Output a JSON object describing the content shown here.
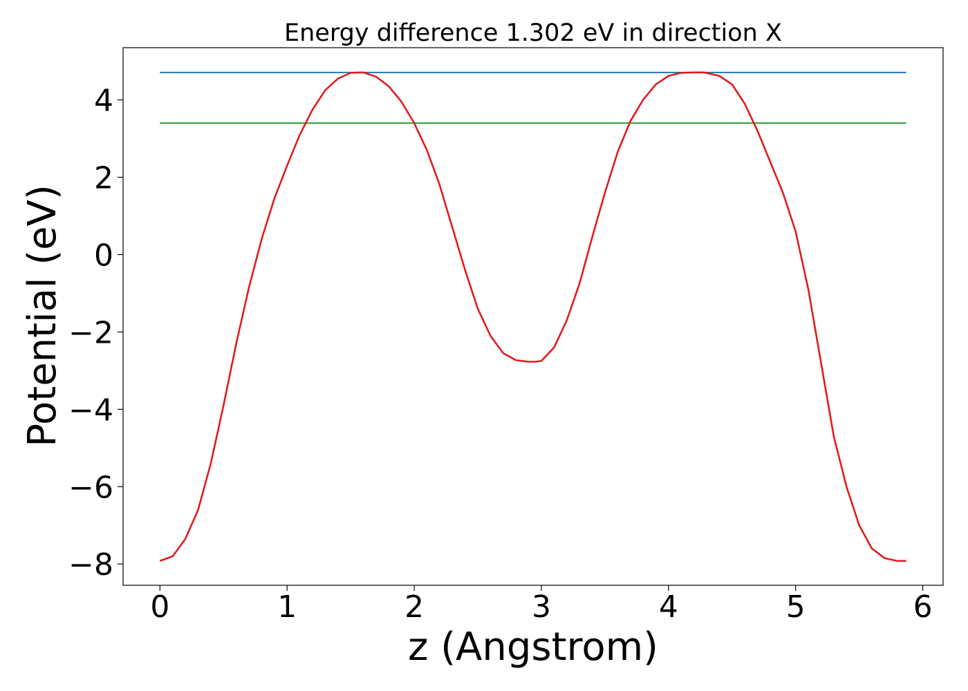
{
  "chart_data": {
    "type": "line",
    "title": "Energy difference 1.302 eV in direction X",
    "xlabel": "z (Angstrom)",
    "ylabel": "Potential (eV)",
    "xlim": [
      -0.29,
      6.16
    ],
    "ylim": [
      -8.55,
      5.35
    ],
    "grid": false,
    "legend": "none",
    "x_ticks": [
      0,
      1,
      2,
      3,
      4,
      5,
      6
    ],
    "x_tick_labels": [
      "0",
      "1",
      "2",
      "3",
      "4",
      "5",
      "6"
    ],
    "y_ticks": [
      -8,
      -6,
      -4,
      -2,
      0,
      2,
      4
    ],
    "y_tick_labels": [
      "−8",
      "−6",
      "−4",
      "−2",
      "0",
      "2",
      "4"
    ],
    "series": [
      {
        "color": "#1f77b4",
        "x": [
          0,
          5.87
        ],
        "y": [
          4.71,
          4.71
        ]
      },
      {
        "color": "#2ca02c",
        "x": [
          0,
          5.87
        ],
        "y": [
          3.4,
          3.4
        ]
      },
      {
        "color": "#e31a1c",
        "x": [
          0.0,
          0.1,
          0.2,
          0.3,
          0.4,
          0.5,
          0.6,
          0.7,
          0.8,
          0.9,
          1.0,
          1.1,
          1.2,
          1.3,
          1.4,
          1.5,
          1.6,
          1.7,
          1.8,
          1.9,
          2.0,
          2.1,
          2.2,
          2.3,
          2.4,
          2.5,
          2.6,
          2.7,
          2.8,
          2.9,
          2.95,
          3.0,
          3.1,
          3.2,
          3.3,
          3.4,
          3.5,
          3.6,
          3.7,
          3.8,
          3.9,
          4.0,
          4.1,
          4.2,
          4.28,
          4.4,
          4.5,
          4.6,
          4.7,
          4.8,
          4.9,
          5.0,
          5.1,
          5.2,
          5.3,
          5.4,
          5.5,
          5.6,
          5.7,
          5.8,
          5.87
        ],
        "y": [
          -7.92,
          -7.8,
          -7.35,
          -6.6,
          -5.4,
          -3.9,
          -2.3,
          -0.85,
          0.4,
          1.45,
          2.3,
          3.1,
          3.75,
          4.25,
          4.55,
          4.7,
          4.71,
          4.6,
          4.35,
          3.95,
          3.4,
          2.7,
          1.8,
          0.7,
          -0.4,
          -1.4,
          -2.1,
          -2.55,
          -2.73,
          -2.77,
          -2.77,
          -2.75,
          -2.4,
          -1.7,
          -0.75,
          0.45,
          1.6,
          2.65,
          3.45,
          4.0,
          4.4,
          4.62,
          4.7,
          4.71,
          4.71,
          4.62,
          4.4,
          3.9,
          3.2,
          2.4,
          1.6,
          0.6,
          -0.9,
          -2.8,
          -4.7,
          -6.0,
          -7.0,
          -7.6,
          -7.85,
          -7.92,
          -7.92
        ]
      }
    ]
  }
}
